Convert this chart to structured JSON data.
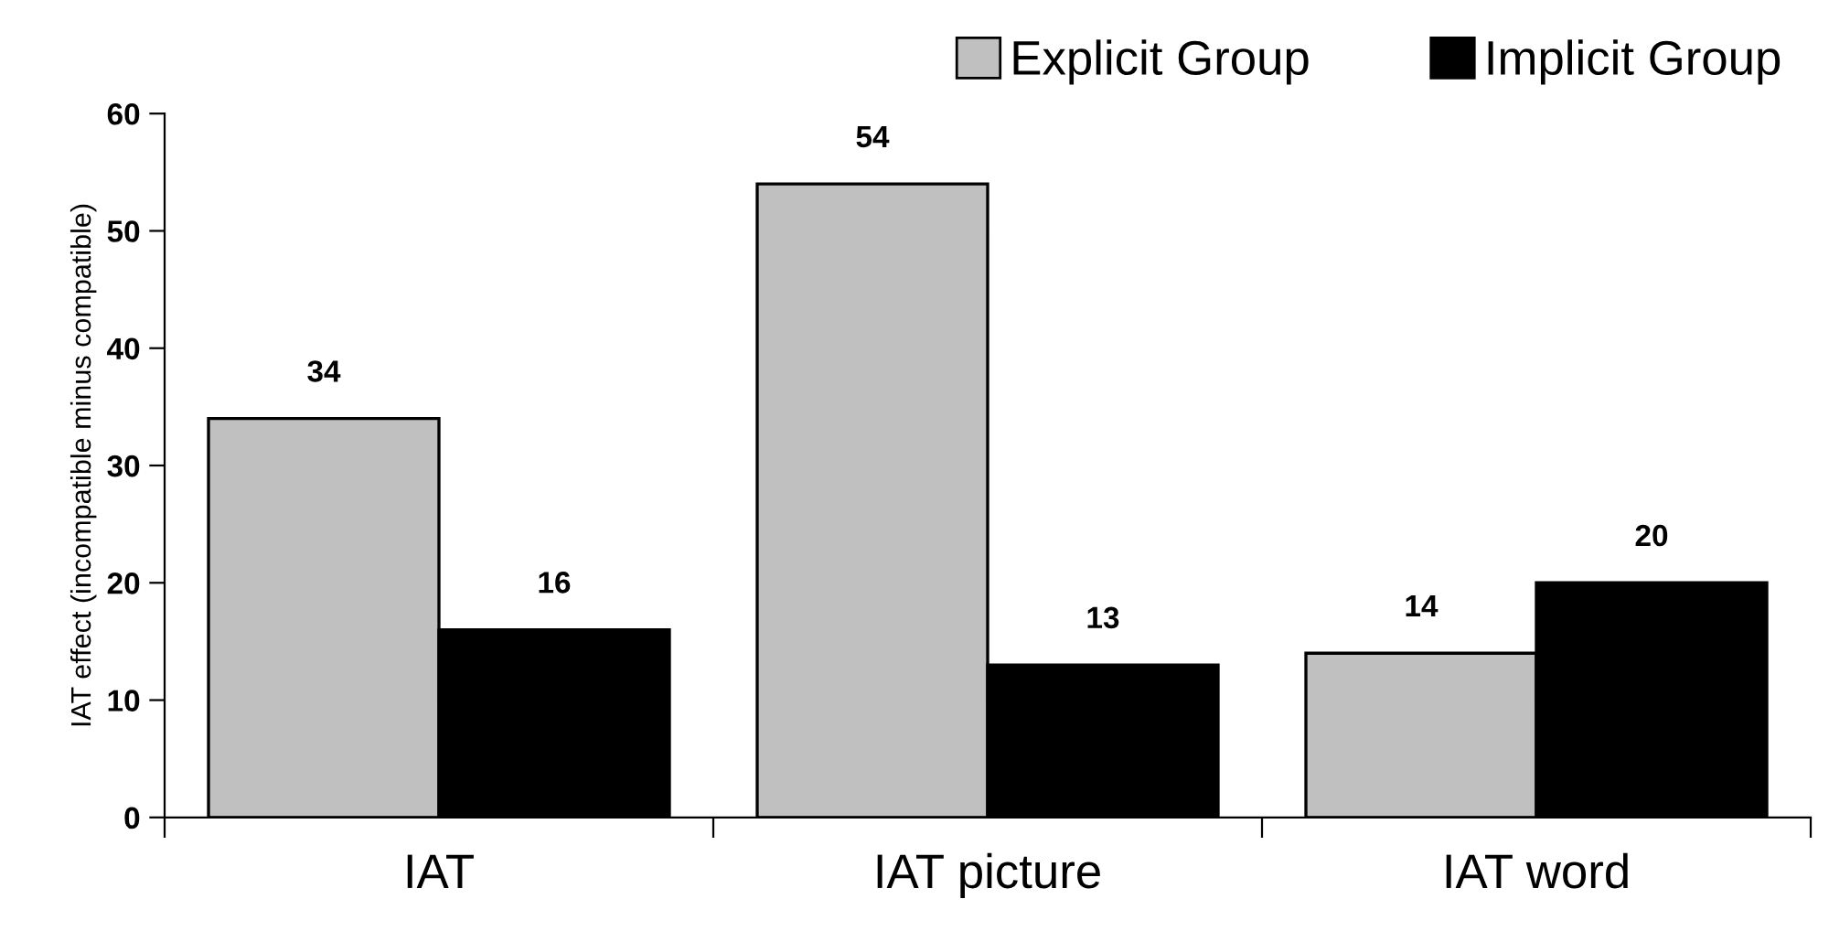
{
  "chart_data": {
    "type": "bar",
    "ylabel": "IAT effect (incompatible minus compatible)",
    "categories": [
      "IAT",
      "IAT picture",
      "IAT word"
    ],
    "series": [
      {
        "name": "Explicit Group",
        "color": "#c0c0c0",
        "values": [
          34,
          54,
          14
        ]
      },
      {
        "name": "Implicit Group",
        "color": "#000000",
        "values": [
          16,
          13,
          20
        ]
      }
    ],
    "ylim": [
      0,
      60
    ],
    "yticks": [
      0,
      10,
      20,
      30,
      40,
      50,
      60
    ],
    "data_labels": true,
    "grid": false,
    "legend": "top right"
  }
}
